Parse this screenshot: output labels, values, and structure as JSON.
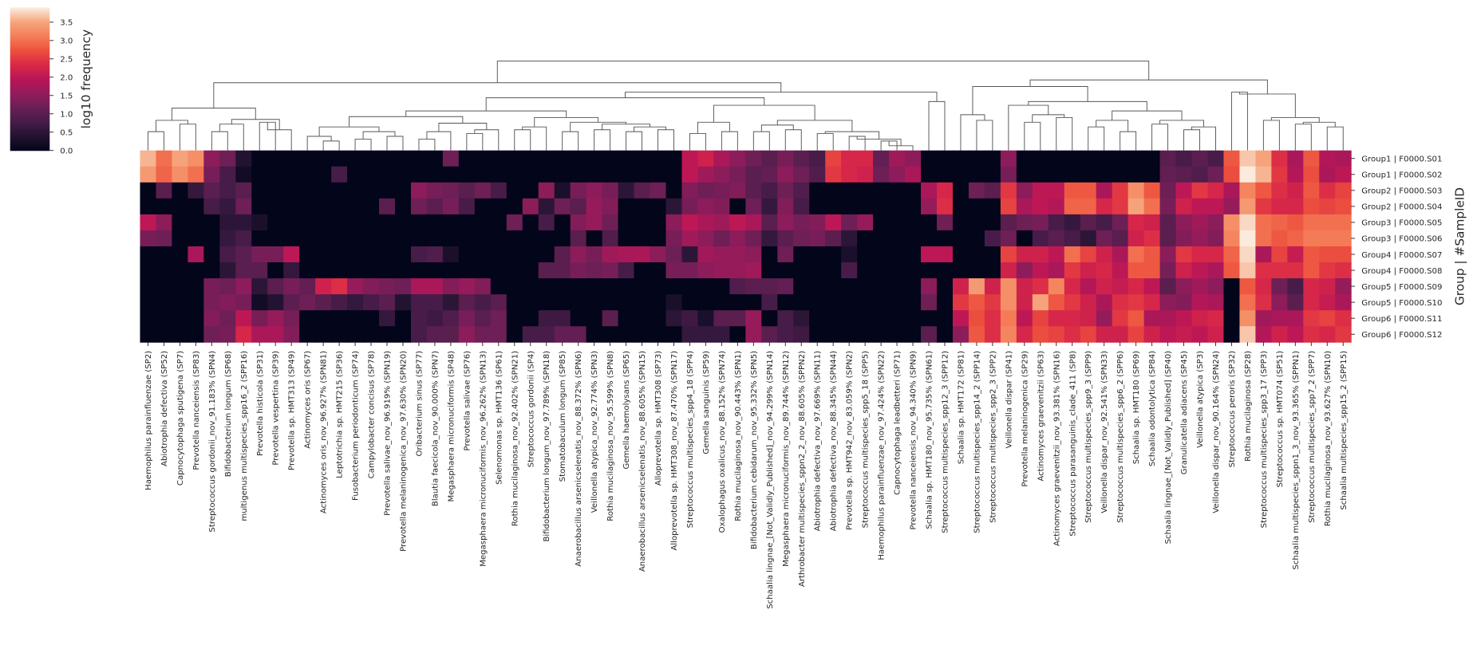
{
  "chart_data": {
    "type": "heatmap",
    "colorbar_label": "log10 frequency",
    "ylabel": "Group | #SampleID",
    "clim": [
      0,
      3.9
    ],
    "cticks": [
      {
        "value": 0,
        "label": "0.0"
      },
      0.5,
      {
        "value": 1,
        "label": "1.0"
      },
      1.5,
      {
        "value": 2,
        "label": "2.0"
      },
      2.5,
      {
        "value": 3,
        "label": "3.0"
      },
      3.5
    ],
    "colorscale": [
      "#03051a",
      "#221331",
      "#451c47",
      "#6a1f56",
      "#921c5b",
      "#b91657",
      "#d92847",
      "#ed503e",
      "#f47d57",
      "#f6a47c",
      "#faebdd"
    ],
    "x": [
      "Haemophilus parainfluenzae (SP2)",
      "Abiotrophia defectiva (SP52)",
      "Capnocytophaga sputigena (SP7)",
      "Prevotella nanceiensis (SP83)",
      "Streptococcus gordonii_nov_91.183% (SPN4)",
      "Bifidobacterium longum (SP68)",
      "multigenus multispecies_spp16_2 (SPP16)",
      "Prevotella histicola (SP31)",
      "Prevotella vespertina (SP39)",
      "Prevotella sp. HMT313 (SP49)",
      "Actinomyces oris (SP67)",
      "Actinomyces oris_nov_96.927% (SPN81)",
      "Leptotrichia sp. HMT215 (SP36)",
      "Fusobacterium periodonticum (SP74)",
      "Campylobacter concisus (SP78)",
      "Prevotella salivae_nov_96.919% (SPN19)",
      "Prevotella melaninogenica_nov_97.630% (SPN20)",
      "Oribacterium sinus (SP77)",
      "Blautia faecicola_nov_90.000% (SPN7)",
      "Megasphaera micronuciformis (SP48)",
      "Prevotella salivae (SP76)",
      "Megasphaera micronuciformis_nov_96.262% (SPN13)",
      "Selenomonas sp. HMT136 (SP61)",
      "Rothia mucilaginosa_nov_92.402% (SPN21)",
      "Streptococcus gordonii (SP4)",
      "Bifidobacterium longum_nov_97.789% (SPN18)",
      "Stomatobaculum longum (SP85)",
      "Anaerobacillus arsenicselenatis_nov_88.372% (SPN6)",
      "Veillonella atypica_nov_92.774% (SPN3)",
      "Rothia mucilaginosa_nov_95.599% (SPN8)",
      "Gemella haemolysans (SP65)",
      "Anaerobacillus arsenicselenatis_nov_88.605% (SPN15)",
      "Alloprevotella sp. HMT308 (SP73)",
      "Alloprevotella sp. HMT308_nov_87.470% (SPN17)",
      "Streptococcus multispecies_spp4_18 (SPP4)",
      "Gemella sanguinis (SP59)",
      "Oxalophagus oxalicus_nov_88.152% (SPN74)",
      "Rothia mucilaginosa_nov_90.443% (SPN1)",
      "Bifidobacterium cebidarum_nov_95.332% (SPN5)",
      "Schaalia lingnae_[Not_Validly_Published]_nov_94.299% (SPN14)",
      "Megasphaera micronuciformis_nov_89.744% (SPN12)",
      "Arthrobacter multispecies_sppn2_2_nov_88.605% (SPPN2)",
      "Abiotrophia defectiva_nov_97.669% (SPN11)",
      "Abiotrophia defectiva_nov_88.345% (SPN44)",
      "Prevotella sp. HMT942_nov_83.059% (SPN2)",
      "Streptococcus multispecies_spp5_18 (SPP5)",
      "Haemophilus parainfluenzae_nov_97.424% (SPN22)",
      "Capnocytophaga leadbetteri (SP71)",
      "Prevotella nanceiensis_nov_94.340% (SPN9)",
      "Schaalia sp. HMT180_nov_95.735% (SPN61)",
      "Streptococcus multispecies_spp12_3 (SPP12)",
      "Schaalia sp. HMT172 (SP81)",
      "Streptococcus multispecies_spp14_2 (SPP14)",
      "Streptococcus multispecies_spp2_3 (SPP2)",
      "Veillonella dispar (SP41)",
      "Prevotella melaninogenica (SP29)",
      "Actinomyces graevenitzii (SP63)",
      "Actinomyces graevenitzii_nov_93.381% (SPN16)",
      "Streptococcus parasanguinis_clade_411 (SP8)",
      "Streptococcus multispecies_spp9_3 (SPP9)",
      "Veillonella dispar_nov_92.541% (SPN33)",
      "Streptococcus multispecies_spp6_2 (SPP6)",
      "Schaalia sp. HMT180 (SP69)",
      "Schaalia odontolytica (SP84)",
      "Schaalia lingnae_[Not_Validly_Published] (SP40)",
      "Granulicatella adiacens (SP45)",
      "Veillonella atypica (SP3)",
      "Veillonella dispar_nov_90.164% (SPN24)",
      "Streptococcus peroris (SP32)",
      "Rothia mucilaginosa (SP28)",
      "Streptococcus multispecies_spp3_17 (SPP3)",
      "Streptococcus sp. HMT074 (SP51)",
      "Schaalia multispecies_sppn1_3_nov_93.365% (SPPN1)",
      "Streptococcus multispecies_spp7_2 (SPP7)",
      "Rothia mucilaginosa_nov_93.627% (SPN10)",
      "Schaalia multispecies_spp15_2 (SPP15)"
    ],
    "y": [
      "Group1 | F0000.S01",
      "Group1 | F0000.S02",
      "Group2 | F0000.S03",
      "Group2 | F0000.S04",
      "Group3 | F0000.S05",
      "Group3 | F0000.S06",
      "Group4 | F0000.S07",
      "Group4 | F0000.S08",
      "Group5 | F0000.S09",
      "Group5 | F0000.S10",
      "Group6 | F0000.S11",
      "Group6 | F0000.S12"
    ],
    "values": [
      [
        3.6,
        3.0,
        3.5,
        3.3,
        1.5,
        1.2,
        0.4,
        0,
        0,
        0,
        0,
        0,
        0,
        0,
        0,
        0,
        0,
        0,
        0,
        1.2,
        0,
        0,
        0,
        0,
        0,
        0,
        0,
        0,
        0,
        0,
        0,
        0,
        0,
        0,
        2.0,
        2.2,
        1.8,
        1.5,
        1.2,
        1.0,
        1.3,
        1.0,
        0.8,
        2.6,
        2.3,
        2.3,
        1.1,
        1.7,
        1.5,
        0,
        0,
        0,
        0,
        0,
        1.5,
        0,
        0,
        0,
        0,
        0,
        0,
        0,
        0,
        0,
        1.0,
        0.8,
        1.0,
        0.8,
        2.8,
        3.7,
        3.5,
        2.4,
        1.8,
        2.8,
        1.9,
        1.8
      ],
      [
        3.4,
        2.9,
        3.3,
        3.0,
        1.3,
        0.8,
        0.2,
        0,
        0,
        0,
        0,
        0,
        0.8,
        0,
        0,
        0,
        0,
        0,
        0,
        0,
        0,
        0,
        0,
        0,
        0,
        0,
        0,
        0,
        0,
        0,
        0,
        0,
        0,
        0,
        2.0,
        1.7,
        1.5,
        1.3,
        1.0,
        1.1,
        1.5,
        1.2,
        0.9,
        2.5,
        2.3,
        2.2,
        1.2,
        1.5,
        1.8,
        0,
        0,
        0,
        0,
        0,
        1.3,
        0,
        0,
        0,
        0,
        0,
        0,
        0,
        0,
        0,
        1.1,
        1.0,
        0.9,
        1.2,
        2.7,
        3.9,
        3.6,
        2.5,
        1.9,
        2.7,
        1.8,
        2.0
      ],
      [
        0,
        1.0,
        0,
        0.6,
        1.0,
        0.8,
        1.0,
        0,
        0,
        0,
        0,
        0,
        0,
        0,
        0,
        0,
        0,
        1.5,
        1.3,
        1.2,
        1.0,
        1.2,
        0.8,
        0,
        0,
        1.5,
        0.3,
        1.3,
        1.5,
        1.3,
        0.5,
        1.0,
        1.2,
        0,
        1.4,
        1.2,
        1.3,
        1.4,
        1.0,
        0.8,
        1.2,
        0.9,
        0,
        0,
        0,
        0,
        0,
        0,
        0,
        1.8,
        2.3,
        0,
        1.2,
        1.0,
        2.5,
        1.5,
        2.0,
        2.0,
        2.8,
        2.8,
        1.8,
        2.5,
        3.3,
        2.8,
        1.2,
        2.0,
        2.5,
        2.3,
        1.8,
        3.2,
        2.8,
        2.4,
        2.2,
        2.8,
        2.4,
        2.6
      ],
      [
        0,
        0,
        0,
        0,
        0.8,
        0.6,
        1.2,
        0,
        0,
        0,
        0,
        0,
        0,
        0,
        0,
        1.0,
        0,
        1.2,
        1.0,
        1.3,
        0.8,
        0,
        0,
        0,
        1.5,
        0.5,
        1.2,
        1.0,
        1.6,
        1.4,
        0,
        0,
        0,
        0.5,
        1.3,
        1.5,
        1.4,
        0,
        1.2,
        0.6,
        1.4,
        0.8,
        0,
        0,
        0,
        0,
        0,
        0,
        0,
        1.6,
        2.4,
        0,
        0,
        0,
        2.6,
        1.8,
        2.0,
        1.9,
        2.9,
        2.9,
        2.3,
        2.5,
        3.5,
        3.0,
        1.3,
        2.2,
        2.0,
        2.0,
        1.6,
        3.4,
        2.5,
        2.3,
        2.3,
        2.7,
        2.6,
        2.7
      ],
      [
        2.0,
        1.5,
        0,
        0,
        0,
        0.5,
        0.5,
        0.3,
        0,
        0,
        0,
        0,
        0,
        0,
        0,
        0,
        0,
        0,
        0,
        0,
        0,
        0,
        0,
        1.2,
        0,
        0.8,
        0,
        1.4,
        1.6,
        1.2,
        0,
        0,
        0,
        1.5,
        2.0,
        1.8,
        1.7,
        2.0,
        1.8,
        1.0,
        1.5,
        1.3,
        1.4,
        2.0,
        1.2,
        1.6,
        0,
        0,
        0,
        0,
        1.2,
        0,
        0,
        0,
        1.0,
        1.2,
        1.3,
        0.8,
        0.6,
        1.0,
        0.8,
        1.2,
        2.3,
        2.2,
        1.0,
        1.5,
        1.7,
        1.5,
        3.3,
        3.8,
        3.0,
        2.9,
        2.8,
        3.0,
        3.0,
        3.0
      ],
      [
        1.3,
        1.2,
        0,
        0,
        0,
        0.6,
        0.8,
        0,
        0,
        0,
        0,
        0,
        0,
        0,
        0,
        0,
        0,
        0,
        0,
        0,
        0,
        0,
        0,
        0,
        0,
        0,
        0,
        1.0,
        0,
        0.9,
        0,
        0,
        0,
        1.3,
        1.7,
        1.5,
        1.2,
        1.5,
        1.2,
        0.6,
        1.0,
        1.2,
        1.3,
        1.0,
        0.5,
        0,
        0,
        0,
        0,
        0,
        0,
        0,
        0,
        0.8,
        1.2,
        0,
        0.8,
        1.0,
        0.8,
        0.5,
        1.2,
        1.0,
        2.2,
        2.4,
        1.0,
        1.4,
        1.6,
        1.4,
        3.2,
        3.9,
        3.0,
        2.8,
        2.9,
        3.1,
        3.1,
        3.1
      ],
      [
        0,
        0,
        0,
        1.8,
        0,
        0.8,
        1.0,
        1.3,
        1.3,
        2.0,
        0,
        0,
        0,
        0,
        0,
        0,
        0,
        0.8,
        0.9,
        0.3,
        0,
        0,
        0,
        0,
        0,
        0,
        1.0,
        1.5,
        1.3,
        1.7,
        1.8,
        1.8,
        1.5,
        1.2,
        0.5,
        1.7,
        1.6,
        1.6,
        1.5,
        0,
        1.2,
        0,
        0,
        0,
        0.3,
        0,
        0,
        0,
        0,
        2.0,
        2.0,
        0,
        0,
        0,
        2.6,
        2.2,
        2.2,
        2.0,
        3.0,
        2.6,
        2.2,
        1.8,
        3.0,
        2.8,
        1.5,
        2.5,
        2.3,
        2.3,
        2.9,
        3.8,
        1.8,
        2.6,
        2.1,
        2.8,
        2.7,
        2.7
      ],
      [
        0,
        0,
        0,
        0,
        0,
        0.5,
        1.0,
        1.0,
        0,
        0.6,
        0,
        0,
        0,
        0,
        0,
        0,
        0,
        0,
        0,
        0,
        0,
        0,
        0,
        0,
        0,
        1.0,
        1.0,
        1.3,
        1.2,
        1.3,
        0.8,
        0,
        0,
        1.3,
        1.3,
        1.5,
        1.6,
        1.6,
        1.7,
        0,
        0,
        0,
        0,
        0,
        0.8,
        0,
        0,
        0,
        0,
        0,
        0,
        0,
        0,
        0,
        2.2,
        1.5,
        2.0,
        1.8,
        2.5,
        2.2,
        2.3,
        2.0,
        2.8,
        2.8,
        1.3,
        2.2,
        2.0,
        1.8,
        2.8,
        3.7,
        2.4,
        2.4,
        2.4,
        2.8,
        2.5,
        2.4
      ],
      [
        0,
        0,
        0,
        0,
        1.3,
        1.2,
        1.5,
        0.5,
        1.0,
        1.3,
        1.1,
        2.2,
        2.4,
        1.6,
        1.4,
        1.3,
        1.2,
        1.8,
        1.8,
        1.4,
        1.6,
        1.4,
        0,
        0,
        0,
        0,
        0,
        0,
        0,
        0,
        0,
        0,
        0,
        0,
        0,
        0,
        0,
        0.9,
        1.0,
        1.0,
        1.1,
        0,
        0,
        0,
        0,
        0,
        0,
        0,
        0,
        1.5,
        0,
        2.2,
        3.4,
        2.2,
        3.3,
        2.2,
        2.4,
        3.2,
        2.3,
        1.9,
        2.2,
        2.1,
        2.3,
        2.0,
        1.0,
        1.5,
        1.7,
        1.5,
        0,
        2.8,
        2.3,
        1.2,
        0.8,
        2.3,
        2.2,
        1.6
      ],
      [
        0,
        0,
        0,
        0,
        1.3,
        1.4,
        1.3,
        0.2,
        0.4,
        1.0,
        1.2,
        1.0,
        0.8,
        0.6,
        0.8,
        1.0,
        0.4,
        0.8,
        0.8,
        0.5,
        1.0,
        0.8,
        1.0,
        0,
        0,
        0,
        0,
        0,
        0,
        0,
        0,
        0,
        0,
        0.3,
        0,
        0,
        0,
        0,
        0,
        0.8,
        0,
        0,
        0,
        0,
        0,
        0,
        0,
        0,
        0,
        1.2,
        0,
        2.5,
        2.8,
        2.5,
        3.3,
        2.2,
        3.5,
        2.8,
        2.5,
        2.2,
        1.8,
        2.4,
        2.5,
        2.3,
        1.5,
        1.4,
        1.9,
        1.8,
        0,
        3.0,
        2.4,
        1.5,
        1.0,
        2.3,
        2.1,
        1.8
      ],
      [
        0,
        0,
        0,
        0,
        1.4,
        1.2,
        2.0,
        1.3,
        1.6,
        1.3,
        0,
        0,
        0,
        0,
        0,
        0.6,
        0,
        0.8,
        0.7,
        0.9,
        1.3,
        1.0,
        1.2,
        0,
        0,
        0.7,
        0.7,
        0,
        0,
        1.0,
        0,
        0,
        0,
        0.5,
        0.7,
        0.3,
        1.0,
        1.0,
        1.6,
        0,
        0.8,
        0.5,
        0,
        0,
        0,
        0,
        0,
        0,
        0,
        0,
        0,
        2.0,
        2.7,
        2.4,
        3.1,
        2.0,
        2.6,
        2.3,
        2.3,
        2.2,
        1.6,
        2.5,
        2.8,
        1.8,
        1.8,
        2.0,
        2.2,
        2.3,
        0,
        3.3,
        1.7,
        1.8,
        1.8,
        2.5,
        2.6,
        2.4
      ],
      [
        0,
        0,
        0,
        0,
        1.2,
        1.3,
        2.3,
        1.8,
        1.8,
        1.4,
        0,
        0,
        0,
        0,
        0,
        0,
        0,
        0.8,
        1.0,
        1.0,
        1.5,
        1.2,
        1.2,
        0,
        0.8,
        0.8,
        1.1,
        1.1,
        0,
        0,
        0,
        0,
        0,
        0,
        0.6,
        0.6,
        0.6,
        0,
        1.6,
        1.0,
        0.8,
        0.7,
        0,
        0,
        0,
        0,
        0,
        0,
        0,
        1.0,
        0,
        1.5,
        2.8,
        2.4,
        3.2,
        2.3,
        2.7,
        2.6,
        2.4,
        2.6,
        2.2,
        2.2,
        2.6,
        2.2,
        2.0,
        2.1,
        2.0,
        2.2,
        0,
        3.7,
        1.9,
        2.2,
        2.0,
        2.4,
        2.3,
        2.5
      ]
    ]
  }
}
